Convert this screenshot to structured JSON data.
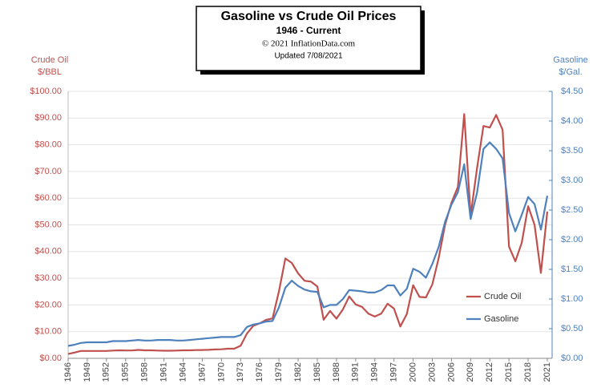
{
  "chart_data": {
    "type": "line",
    "title": "Gasoline vs Crude Oil Prices",
    "subtitle": "1946 - Current",
    "copyright": "© 2021 InflationData.com",
    "updated": "Updated  7/08/2021",
    "ylabel": [
      "Crude Oil",
      "$/BBL"
    ],
    "y2label": [
      "Gasoline",
      "$/Gal."
    ],
    "x": [
      1946,
      1947,
      1948,
      1949,
      1950,
      1951,
      1952,
      1953,
      1954,
      1955,
      1956,
      1957,
      1958,
      1959,
      1960,
      1961,
      1962,
      1963,
      1964,
      1965,
      1966,
      1967,
      1968,
      1969,
      1970,
      1971,
      1972,
      1973,
      1974,
      1975,
      1976,
      1977,
      1978,
      1979,
      1980,
      1981,
      1982,
      1983,
      1984,
      1985,
      1986,
      1987,
      1988,
      1989,
      1990,
      1991,
      1992,
      1993,
      1994,
      1995,
      1996,
      1997,
      1998,
      1999,
      2000,
      2001,
      2002,
      2003,
      2004,
      2005,
      2006,
      2007,
      2008,
      2009,
      2010,
      2011,
      2012,
      2013,
      2014,
      2015,
      2016,
      2017,
      2018,
      2019,
      2020,
      2021
    ],
    "series": [
      {
        "name": "Crude Oil",
        "color": "#c0504d",
        "axis": "y",
        "values": [
          1.63,
          2.16,
          2.77,
          2.77,
          2.77,
          2.77,
          2.77,
          2.92,
          2.99,
          2.93,
          2.94,
          3.14,
          3.0,
          3.0,
          2.91,
          2.85,
          2.85,
          2.91,
          3.0,
          3.01,
          3.1,
          3.12,
          3.18,
          3.32,
          3.39,
          3.6,
          3.6,
          4.75,
          9.35,
          12.21,
          13.1,
          14.4,
          14.95,
          25.1,
          37.42,
          35.75,
          31.83,
          29.08,
          28.75,
          26.92,
          14.44,
          17.75,
          14.87,
          18.33,
          23.19,
          20.2,
          19.25,
          16.75,
          15.66,
          16.75,
          20.46,
          18.64,
          11.91,
          16.56,
          27.39,
          23.0,
          22.81,
          27.69,
          37.66,
          50.04,
          58.3,
          64.2,
          91.48,
          53.48,
          71.21,
          87.04,
          86.46,
          91.17,
          85.6,
          41.85,
          36.34,
          43.29,
          57.0,
          50.0,
          32.0,
          55.0
        ]
      },
      {
        "name": "Gasoline",
        "color": "#4f81bd",
        "axis": "y2",
        "values": [
          0.21,
          0.23,
          0.26,
          0.27,
          0.27,
          0.27,
          0.27,
          0.29,
          0.29,
          0.29,
          0.3,
          0.31,
          0.3,
          0.3,
          0.31,
          0.31,
          0.31,
          0.3,
          0.3,
          0.31,
          0.32,
          0.33,
          0.34,
          0.35,
          0.36,
          0.36,
          0.36,
          0.39,
          0.53,
          0.57,
          0.59,
          0.62,
          0.63,
          0.86,
          1.19,
          1.31,
          1.22,
          1.16,
          1.13,
          1.12,
          0.86,
          0.9,
          0.9,
          1.0,
          1.15,
          1.14,
          1.13,
          1.11,
          1.11,
          1.15,
          1.23,
          1.23,
          1.06,
          1.17,
          1.51,
          1.46,
          1.36,
          1.59,
          1.88,
          2.3,
          2.59,
          2.8,
          3.27,
          2.35,
          2.79,
          3.53,
          3.64,
          3.53,
          3.37,
          2.45,
          2.14,
          2.42,
          2.72,
          2.6,
          2.17,
          2.74
        ]
      }
    ],
    "xlim": [
      1946,
      2021
    ],
    "xticks": [
      1946,
      1949,
      1952,
      1955,
      1958,
      1961,
      1964,
      1967,
      1970,
      1973,
      1976,
      1979,
      1982,
      1985,
      1988,
      1991,
      1994,
      1997,
      2000,
      2003,
      2006,
      2009,
      2012,
      2015,
      2018,
      2021
    ],
    "ylim": [
      0,
      100
    ],
    "yticks": [
      {
        "value": 0,
        "label": "$0.00"
      },
      {
        "value": 10,
        "label": "$10.00"
      },
      {
        "value": 20,
        "label": "$20.00"
      },
      {
        "value": 30,
        "label": "$30.00"
      },
      {
        "value": 40,
        "label": "$40.00"
      },
      {
        "value": 50,
        "label": "$50.00"
      },
      {
        "value": 60,
        "label": "$60.00"
      },
      {
        "value": 70,
        "label": "$70.00"
      },
      {
        "value": 80,
        "label": "$80.00"
      },
      {
        "value": 90,
        "label": "$90.00"
      },
      {
        "value": 100,
        "label": "$100.00"
      }
    ],
    "y2lim": [
      0,
      4.5
    ],
    "y2ticks": [
      {
        "value": 0,
        "label": "$0.00"
      },
      {
        "value": 0.5,
        "label": "$0.50"
      },
      {
        "value": 1,
        "label": "$1.00"
      },
      {
        "value": 1.5,
        "label": "$1.50"
      },
      {
        "value": 2,
        "label": "$2.00"
      },
      {
        "value": 2.5,
        "label": "$2.50"
      },
      {
        "value": 3,
        "label": "$3.00"
      },
      {
        "value": 3.5,
        "label": "$3.50"
      },
      {
        "value": 4,
        "label": "$4.00"
      },
      {
        "value": 4.5,
        "label": "$4.50"
      }
    ],
    "grid": true
  }
}
